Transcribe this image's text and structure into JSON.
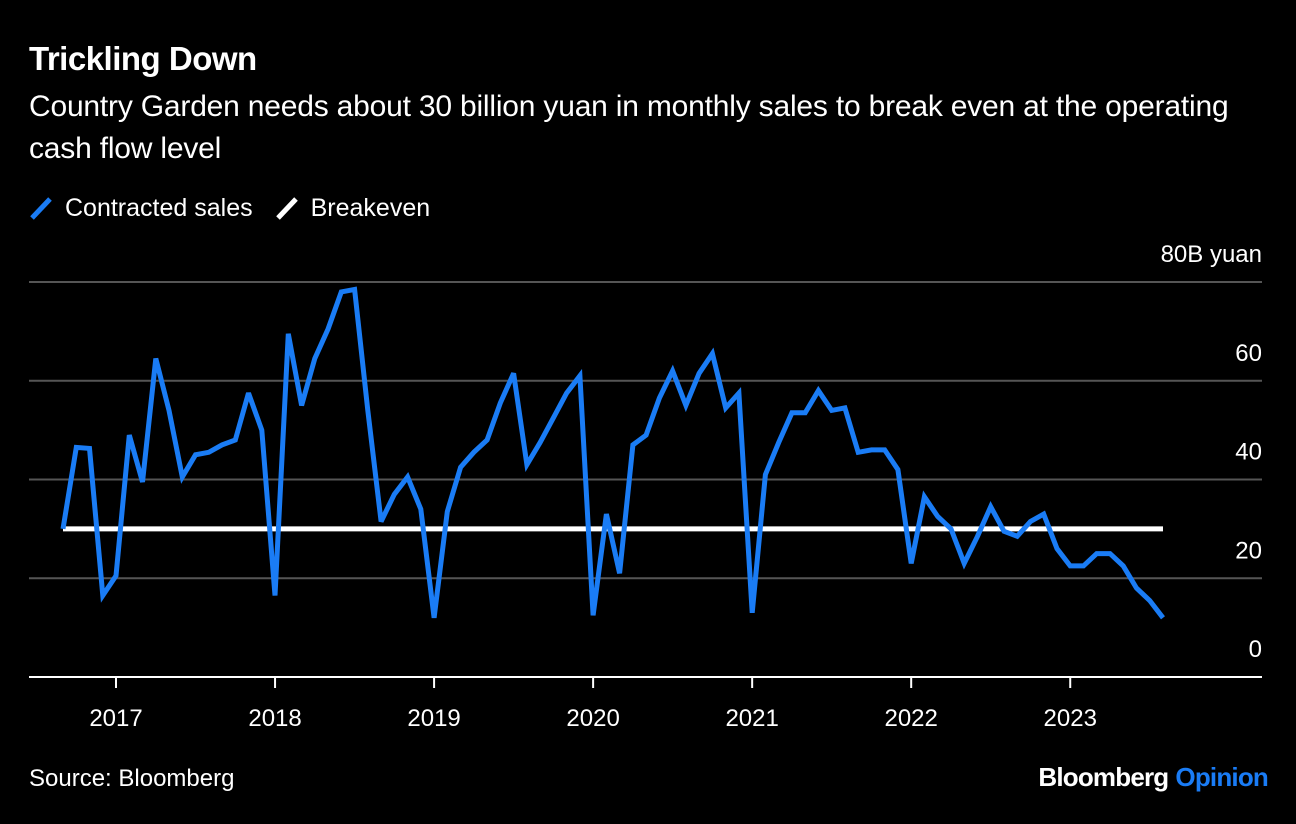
{
  "title": "Trickling Down",
  "subtitle": "Country Garden needs about 30 billion yuan in monthly sales to break even at the operating cash flow level",
  "source": "Source: Bloomberg",
  "brand": {
    "name": "Bloomberg",
    "suffix": "Opinion",
    "suffix_color": "#1a7cf5"
  },
  "colors": {
    "background": "#000000",
    "sales": "#1a7cf5",
    "breakeven": "#ffffff",
    "grid": "#555555"
  },
  "chart_data": {
    "type": "line",
    "title": "Trickling Down",
    "subtitle": "Country Garden needs about 30 billion yuan in monthly sales to break even at the operating cash flow level",
    "xlabel": "",
    "ylabel": "80B yuan",
    "unit_label": "80B yuan",
    "ylim": [
      0,
      80
    ],
    "yticks": [
      0,
      20,
      40,
      60
    ],
    "y_top_label": "80B yuan",
    "x_range": [
      "2016-09",
      "2023-08"
    ],
    "xticks": [
      "2017",
      "2018",
      "2019",
      "2020",
      "2021",
      "2022",
      "2023"
    ],
    "grid": true,
    "legend_position": "top-left",
    "series": [
      {
        "name": "Contracted sales",
        "color": "#1a7cf5",
        "start_month": "2016-09",
        "frequency": "monthly",
        "values": [
          30.0,
          46.5,
          46.3,
          16.5,
          20.5,
          49.0,
          39.5,
          64.5,
          54.0,
          40.5,
          45.0,
          45.5,
          47.0,
          48.0,
          57.5,
          50.0,
          16.5,
          69.5,
          55.0,
          64.5,
          70.5,
          78.0,
          78.5,
          54.0,
          31.5,
          37.0,
          40.5,
          34.0,
          12.0,
          33.5,
          42.5,
          45.5,
          48.0,
          55.5,
          61.5,
          43.0,
          47.5,
          52.5,
          57.5,
          61.0,
          12.5,
          33.0,
          21.0,
          47.0,
          49.0,
          56.5,
          62.0,
          55.0,
          61.5,
          65.5,
          54.5,
          57.5,
          13.0,
          41.0,
          47.5,
          53.5,
          53.5,
          58.0,
          54.0,
          54.5,
          45.5,
          46.0,
          46.0,
          42.0,
          23.0,
          36.5,
          32.5,
          30.0,
          23.0,
          28.5,
          34.5,
          29.5,
          28.5,
          31.5,
          33.0,
          26.0,
          22.5,
          22.5,
          25.0,
          25.0,
          22.5,
          18.0,
          15.5,
          12.0
        ]
      },
      {
        "name": "Breakeven",
        "color": "#ffffff",
        "values": [
          30,
          30
        ]
      }
    ]
  }
}
